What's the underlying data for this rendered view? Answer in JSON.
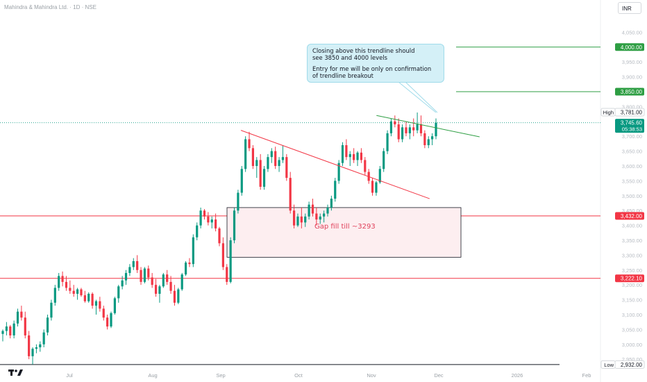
{
  "header": {
    "symbol_text": "Mahindra & Mahindra Ltd. · 1D · NSE"
  },
  "currency_button": "INR",
  "annotations": {
    "callout_line1": "Closing above this trendline should",
    "callout_line2": "see 3850 and 4000 levels",
    "callout_line3": "Entry for me will be only on confirmation",
    "callout_line4": "of trendline breakout",
    "gap_fill": "Gap fill till ~3293"
  },
  "chart_data": {
    "type": "candlestick",
    "y_axis": {
      "min": 2920,
      "max": 4100,
      "position": "right",
      "ticks": [
        "4,050.00",
        "3,950.00",
        "3,900.00",
        "3,800.00",
        "3,700.00",
        "3,650.00",
        "3,600.00",
        "3,550.00",
        "3,500.00",
        "3,450.00",
        "3,400.00",
        "3,350.00",
        "3,300.00",
        "3,250.00",
        "3,200.00",
        "3,150.00",
        "3,100.00",
        "3,050.00",
        "3,000.00",
        "2,950.00"
      ],
      "tick_values": [
        4050,
        3950,
        3900,
        3800,
        3700,
        3650,
        3600,
        3550,
        3500,
        3450,
        3400,
        3350,
        3300,
        3250,
        3200,
        3150,
        3100,
        3050,
        3000,
        2950
      ]
    },
    "x_axis": {
      "labels": [
        "Jul",
        "Aug",
        "Sep",
        "Oct",
        "Nov",
        "Dec",
        "2026",
        "Feb"
      ]
    },
    "price_labels": [
      {
        "text": "4,000.00",
        "value": 4000,
        "color": "#2e9e43"
      },
      {
        "text": "3,850.00",
        "value": 3850,
        "color": "#2e9e43"
      },
      {
        "text": "3,781.00",
        "value": 3781,
        "color": "#131722",
        "prefix": "High"
      },
      {
        "text": "3,745.60",
        "value": 3745.6,
        "color": "#089981",
        "sub": "05:38:53"
      },
      {
        "text": "3,432.00",
        "value": 3432,
        "color": "#f23645"
      },
      {
        "text": "3,222.10",
        "value": 3222.1,
        "color": "#f23645"
      },
      {
        "text": "2,932.00",
        "value": 2932,
        "color": "#131722",
        "prefix": "Low"
      }
    ],
    "horizontal_levels": [
      {
        "value": 4000,
        "color": "#2e9e43"
      },
      {
        "value": 3850,
        "color": "#2e9e43"
      },
      {
        "value": 3432,
        "color": "#f23645"
      },
      {
        "value": 3222.1,
        "color": "#f23645"
      },
      {
        "value": 2932,
        "color": "#131722"
      }
    ],
    "gap_zone": {
      "top": 3460,
      "bottom": 3293
    },
    "grid": false,
    "colors": {
      "up": "#089981",
      "down": "#f23645"
    },
    "candles_ohlc": [
      [
        3035,
        3050,
        3010,
        3045
      ],
      [
        3045,
        3075,
        3030,
        3060
      ],
      [
        3060,
        3065,
        3020,
        3030
      ],
      [
        3030,
        3080,
        3020,
        3070
      ],
      [
        3070,
        3120,
        3060,
        3110
      ],
      [
        3110,
        3130,
        3080,
        3090
      ],
      [
        3090,
        3110,
        3020,
        3030
      ],
      [
        3030,
        3045,
        2950,
        2960
      ],
      [
        2960,
        2990,
        2932,
        2985
      ],
      [
        2985,
        3000,
        2970,
        2990
      ],
      [
        2990,
        3010,
        2975,
        3000
      ],
      [
        3000,
        3050,
        2990,
        3040
      ],
      [
        3040,
        3100,
        3030,
        3090
      ],
      [
        3090,
        3150,
        3080,
        3140
      ],
      [
        3140,
        3200,
        3130,
        3190
      ],
      [
        3190,
        3240,
        3180,
        3230
      ],
      [
        3230,
        3245,
        3195,
        3210
      ],
      [
        3210,
        3230,
        3180,
        3190
      ],
      [
        3190,
        3215,
        3170,
        3180
      ],
      [
        3180,
        3200,
        3160,
        3170
      ],
      [
        3170,
        3190,
        3150,
        3185
      ],
      [
        3185,
        3190,
        3160,
        3165
      ],
      [
        3165,
        3180,
        3140,
        3145
      ],
      [
        3145,
        3175,
        3140,
        3170
      ],
      [
        3170,
        3175,
        3120,
        3130
      ],
      [
        3130,
        3150,
        3100,
        3145
      ],
      [
        3145,
        3160,
        3110,
        3120
      ],
      [
        3120,
        3130,
        3080,
        3090
      ],
      [
        3090,
        3100,
        3050,
        3060
      ],
      [
        3060,
        3110,
        3055,
        3105
      ],
      [
        3105,
        3160,
        3100,
        3155
      ],
      [
        3155,
        3200,
        3140,
        3195
      ],
      [
        3195,
        3230,
        3185,
        3215
      ],
      [
        3215,
        3250,
        3200,
        3240
      ],
      [
        3240,
        3270,
        3230,
        3260
      ],
      [
        3260,
        3290,
        3250,
        3280
      ],
      [
        3280,
        3300,
        3240,
        3250
      ],
      [
        3250,
        3260,
        3200,
        3210
      ],
      [
        3210,
        3260,
        3205,
        3255
      ],
      [
        3255,
        3265,
        3215,
        3225
      ],
      [
        3225,
        3240,
        3190,
        3200
      ],
      [
        3200,
        3220,
        3160,
        3170
      ],
      [
        3170,
        3200,
        3140,
        3195
      ],
      [
        3195,
        3240,
        3190,
        3235
      ],
      [
        3235,
        3250,
        3200,
        3210
      ],
      [
        3210,
        3230,
        3170,
        3180
      ],
      [
        3180,
        3200,
        3130,
        3140
      ],
      [
        3140,
        3190,
        3135,
        3185
      ],
      [
        3185,
        3240,
        3180,
        3235
      ],
      [
        3235,
        3280,
        3230,
        3275
      ],
      [
        3275,
        3290,
        3260,
        3270
      ],
      [
        3270,
        3370,
        3260,
        3360
      ],
      [
        3360,
        3410,
        3350,
        3400
      ],
      [
        3400,
        3460,
        3390,
        3450
      ],
      [
        3450,
        3455,
        3420,
        3430
      ],
      [
        3430,
        3445,
        3400,
        3410
      ],
      [
        3410,
        3430,
        3390,
        3420
      ],
      [
        3420,
        3440,
        3380,
        3390
      ],
      [
        3390,
        3395,
        3330,
        3340
      ],
      [
        3340,
        3360,
        3250,
        3260
      ],
      [
        3260,
        3270,
        3200,
        3210
      ],
      [
        3210,
        3360,
        3205,
        3350
      ],
      [
        3350,
        3460,
        3340,
        3450
      ],
      [
        3450,
        3520,
        3440,
        3510
      ],
      [
        3510,
        3600,
        3500,
        3590
      ],
      [
        3590,
        3700,
        3580,
        3690
      ],
      [
        3690,
        3715,
        3650,
        3660
      ],
      [
        3660,
        3670,
        3590,
        3600
      ],
      [
        3600,
        3630,
        3560,
        3620
      ],
      [
        3620,
        3640,
        3520,
        3530
      ],
      [
        3530,
        3600,
        3520,
        3590
      ],
      [
        3590,
        3640,
        3580,
        3630
      ],
      [
        3630,
        3660,
        3610,
        3650
      ],
      [
        3650,
        3665,
        3590,
        3600
      ],
      [
        3600,
        3630,
        3580,
        3620
      ],
      [
        3620,
        3670,
        3610,
        3630
      ],
      [
        3630,
        3640,
        3550,
        3560
      ],
      [
        3560,
        3580,
        3440,
        3450
      ],
      [
        3450,
        3470,
        3390,
        3400
      ],
      [
        3400,
        3440,
        3395,
        3430
      ],
      [
        3430,
        3460,
        3390,
        3410
      ],
      [
        3410,
        3440,
        3395,
        3430
      ],
      [
        3430,
        3480,
        3420,
        3470
      ],
      [
        3470,
        3490,
        3430,
        3440
      ],
      [
        3440,
        3460,
        3400,
        3420
      ],
      [
        3420,
        3440,
        3405,
        3430
      ],
      [
        3430,
        3450,
        3410,
        3440
      ],
      [
        3440,
        3470,
        3430,
        3460
      ],
      [
        3460,
        3500,
        3450,
        3490
      ],
      [
        3490,
        3560,
        3480,
        3550
      ],
      [
        3550,
        3620,
        3540,
        3610
      ],
      [
        3610,
        3680,
        3600,
        3670
      ],
      [
        3670,
        3690,
        3620,
        3630
      ],
      [
        3630,
        3650,
        3600,
        3640
      ],
      [
        3640,
        3660,
        3610,
        3620
      ],
      [
        3620,
        3650,
        3600,
        3645
      ],
      [
        3645,
        3660,
        3610,
        3620
      ],
      [
        3620,
        3630,
        3570,
        3580
      ],
      [
        3580,
        3590,
        3540,
        3550
      ],
      [
        3550,
        3560,
        3500,
        3510
      ],
      [
        3510,
        3550,
        3500,
        3545
      ],
      [
        3545,
        3600,
        3540,
        3590
      ],
      [
        3590,
        3660,
        3580,
        3650
      ],
      [
        3650,
        3720,
        3640,
        3710
      ],
      [
        3710,
        3760,
        3700,
        3750
      ],
      [
        3750,
        3770,
        3730,
        3740
      ],
      [
        3740,
        3760,
        3680,
        3690
      ],
      [
        3690,
        3740,
        3680,
        3730
      ],
      [
        3730,
        3750,
        3700,
        3710
      ],
      [
        3710,
        3740,
        3690,
        3730
      ],
      [
        3730,
        3760,
        3700,
        3720
      ],
      [
        3720,
        3780,
        3710,
        3740
      ],
      [
        3740,
        3770,
        3700,
        3710
      ],
      [
        3710,
        3720,
        3660,
        3670
      ],
      [
        3670,
        3700,
        3660,
        3690
      ],
      [
        3690,
        3710,
        3670,
        3700
      ],
      [
        3700,
        3760,
        3690,
        3745.6
      ]
    ],
    "trendlines": [
      {
        "color": "#f23645",
        "from": [
          0.348,
          3720
        ],
        "to": [
          0.65,
          3490
        ]
      },
      {
        "color": "#2e9e43",
        "from": [
          0.565,
          3770
        ],
        "to": [
          0.73,
          3698
        ]
      }
    ]
  }
}
